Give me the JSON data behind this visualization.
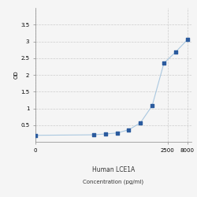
{
  "title": "Human LCE1A",
  "xlabel": "Concentration (pg/ml)",
  "ylabel": "OD",
  "x_values": [
    1,
    31.25,
    62.5,
    125,
    250,
    500,
    1000,
    2000,
    4000,
    8000
  ],
  "y_values": [
    0.195,
    0.21,
    0.235,
    0.265,
    0.36,
    0.57,
    1.08,
    2.35,
    2.68,
    3.05
  ],
  "xlim": [
    1,
    10000
  ],
  "ylim": [
    0,
    4.0
  ],
  "yticks": [
    0.5,
    1.0,
    1.5,
    2.0,
    2.5,
    3.0,
    3.5
  ],
  "ytick_labels": [
    "0.5",
    "1",
    "1.5",
    "2",
    "2.5",
    "3",
    "3.5"
  ],
  "xtick_positions": [
    1,
    2500,
    8000
  ],
  "xtick_labels": [
    "0",
    "2500",
    "8000"
  ],
  "line_color": "#aac8e0",
  "marker_color": "#2b5b9e",
  "background_color": "#f5f5f5",
  "grid_color": "#cccccc",
  "title_fontsize": 5.5,
  "label_fontsize": 5,
  "tick_fontsize": 5
}
